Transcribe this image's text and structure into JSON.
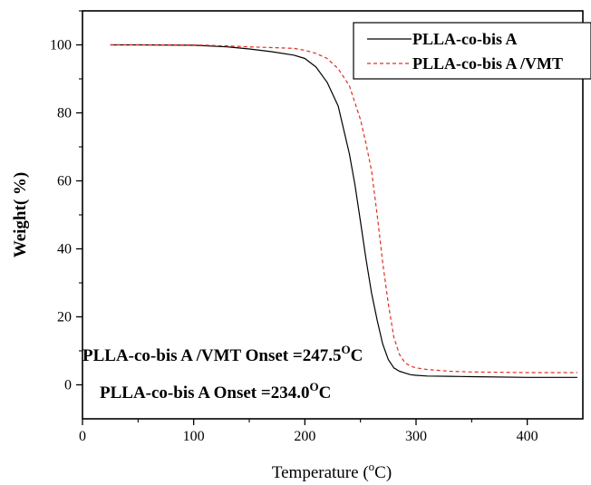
{
  "chart_data": {
    "type": "line",
    "xlabel": "Temperature (",
    "xlabel_unit": "C)",
    "xlabel_sup": "o",
    "ylabel": "Weight( %)",
    "xlim": [
      0,
      450
    ],
    "ylim": [
      -10,
      110
    ],
    "xticks": [
      0,
      100,
      200,
      300,
      400
    ],
    "xtick_labels": [
      "0",
      "100",
      "200",
      "300",
      "400"
    ],
    "yticks": [
      0,
      20,
      40,
      60,
      80,
      100
    ],
    "ytick_labels": [
      "0",
      "20",
      "40",
      "60",
      "80",
      "100"
    ],
    "grid": false,
    "legend_position": "top-right",
    "series": [
      {
        "name": "PLLA-co-bis A",
        "color": "#000000",
        "dash": "solid",
        "x": [
          25,
          50,
          100,
          130,
          150,
          170,
          190,
          200,
          210,
          220,
          230,
          240,
          245,
          250,
          255,
          260,
          265,
          270,
          275,
          280,
          285,
          290,
          295,
          300,
          310,
          330,
          350,
          400,
          445
        ],
        "y": [
          100,
          100,
          99.9,
          99.4,
          98.8,
          98,
          97,
          96,
          93.5,
          89,
          82,
          68,
          59,
          48,
          37,
          27,
          19,
          12,
          7.5,
          5,
          4,
          3.5,
          3,
          2.8,
          2.6,
          2.5,
          2.4,
          2.2,
          2.2
        ]
      },
      {
        "name": "PLLA-co-bis A /VMT",
        "color": "#e03020",
        "dash": "dashed",
        "x": [
          25,
          50,
          100,
          130,
          150,
          170,
          190,
          200,
          210,
          220,
          230,
          240,
          250,
          255,
          260,
          265,
          270,
          275,
          280,
          285,
          290,
          295,
          300,
          310,
          330,
          350,
          400,
          445
        ],
        "y": [
          100,
          100,
          100,
          99.7,
          99.4,
          99.2,
          99,
          98.4,
          97.5,
          96,
          93,
          88,
          78,
          71,
          63,
          50,
          36,
          24,
          14,
          9,
          6.5,
          5.5,
          5,
          4.5,
          4,
          3.8,
          3.6,
          3.6
        ]
      }
    ],
    "annotations": [
      {
        "label": "PLLA-co-bis A /VMT Onset =247.5",
        "sup": "O",
        "unit": "C"
      },
      {
        "label": "PLLA-co-bis A Onset =234.0",
        "sup": "O",
        "unit": "C"
      }
    ]
  }
}
